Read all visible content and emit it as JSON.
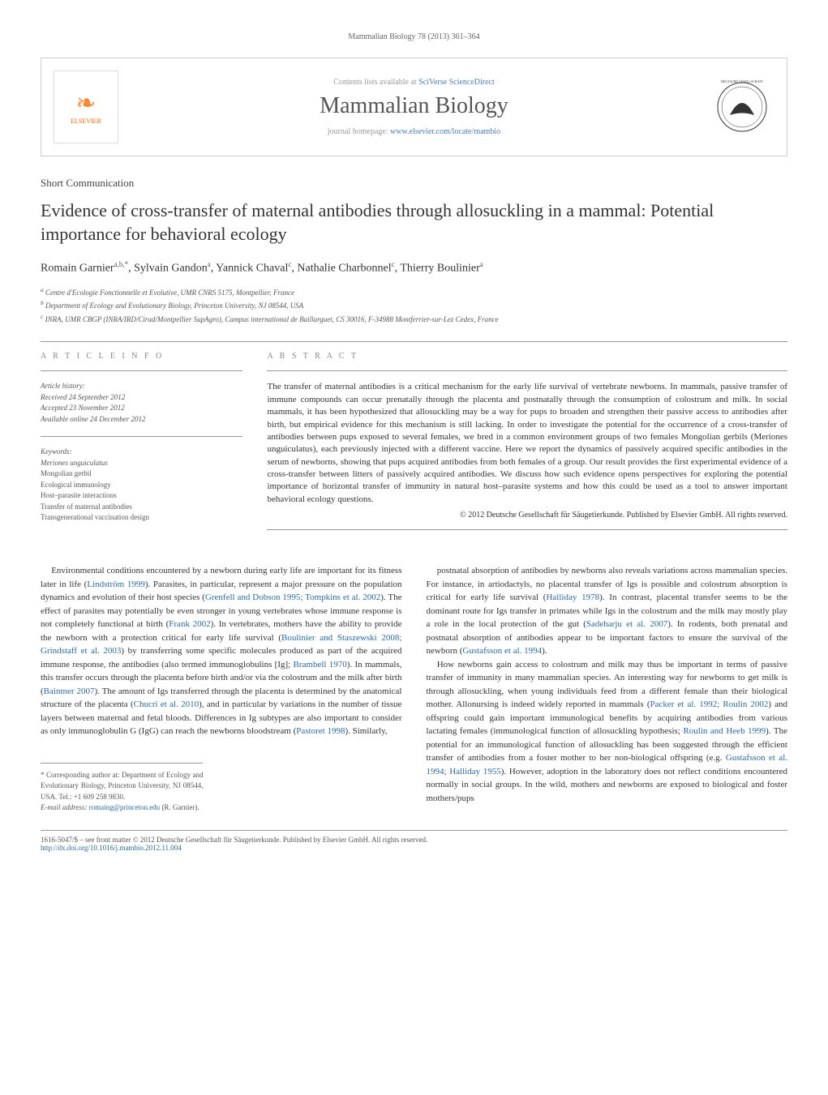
{
  "header_page": "Mammalian Biology 78 (2013) 361–364",
  "banner": {
    "contents_text": "Contents lists available at ",
    "contents_link": "SciVerse ScienceDirect",
    "journal_title": "Mammalian Biology",
    "homepage_label": "journal homepage: ",
    "homepage_link": "www.elsevier.com/locate/mambio",
    "elsevier_label": "ELSEVIER"
  },
  "section_label": "Short Communication",
  "title": "Evidence of cross-transfer of maternal antibodies through allosuckling in a mammal: Potential importance for behavioral ecology",
  "authors_html": "Romain Garnier<sup>a,b,*</sup>, Sylvain Gandon<sup>a</sup>, Yannick Chaval<sup>c</sup>, Nathalie Charbonnel<sup>c</sup>, Thierry Boulinier<sup>a</sup>",
  "affiliations": {
    "a": "Centre d'Ecologie Fonctionnelle et Evolutive, UMR CNRS 5175, Montpellier, France",
    "b": "Department of Ecology and Evolutionary Biology, Princeton University, NJ 08544, USA",
    "c": "INRA, UMR CBGP (INRA/IRD/Cirad/Montpellier SupAgro), Campus international de Baillarguet, CS 30016, F-34988 Montferrier-sur-Lez Cedex, France"
  },
  "article_info": {
    "heading": "A R T I C L E   I N F O",
    "history_head": "Article history:",
    "received": "Received 24 September 2012",
    "accepted": "Accepted 23 November 2012",
    "online": "Available online 24 December 2012",
    "keywords_head": "Keywords:",
    "kw1": "Meriones unguiculatus",
    "kw2": "Mongolian gerbil",
    "kw3": "Ecological immunology",
    "kw4": "Host–parasite interactions",
    "kw5": "Transfer of maternal antibodies",
    "kw6": "Transgenerational vaccination design"
  },
  "abstract": {
    "heading": "A B S T R A C T",
    "text": "The transfer of maternal antibodies is a critical mechanism for the early life survival of vertebrate newborns. In mammals, passive transfer of immune compounds can occur prenatally through the placenta and postnatally through the consumption of colostrum and milk. In social mammals, it has been hypothesized that allosuckling may be a way for pups to broaden and strengthen their passive access to antibodies after birth, but empirical evidence for this mechanism is still lacking. In order to investigate the potential for the occurrence of a cross-transfer of antibodies between pups exposed to several females, we bred in a common environment groups of two females Mongolian gerbils (Meriones unguiculatus), each previously injected with a different vaccine. Here we report the dynamics of passively acquired specific antibodies in the serum of newborns, showing that pups acquired antibodies from both females of a group. Our result provides the first experimental evidence of a cross-transfer between litters of passively acquired antibodies. We discuss how such evidence opens perspectives for exploring the potential importance of horizontal transfer of immunity in natural host–parasite systems and how this could be used as a tool to answer important behavioral ecology questions.",
    "copyright": "© 2012 Deutsche Gesellschaft für Säugetierkunde. Published by Elsevier GmbH. All rights reserved."
  },
  "body": {
    "col1": "Environmental conditions encountered by a newborn during early life are important for its fitness later in life (<span class=\"cite\">Lindström 1999</span>). Parasites, in particular, represent a major pressure on the population dynamics and evolution of their host species (<span class=\"cite\">Grenfell and Dobson 1995; Tompkins et al. 2002</span>). The effect of parasites may potentially be even stronger in young vertebrates whose immune response is not completely functional at birth (<span class=\"cite\">Frank 2002</span>). In vertebrates, mothers have the ability to provide the newborn with a protection critical for early life survival (<span class=\"cite\">Boulinier and Staszewski 2008; Grindstaff et al. 2003</span>) by transferring some specific molecules produced as part of the acquired immune response, the antibodies (also termed immunoglobulins [Ig]; <span class=\"cite\">Brambell 1970</span>). In mammals, this transfer occurs through the placenta before birth and/or via the colostrum and the milk after birth (<span class=\"cite\">Baintner 2007</span>). The amount of Igs transferred through the placenta is determined by the anatomical structure of the placenta (<span class=\"cite\">Chucri et al. 2010</span>), and in particular by variations in the number of tissue layers between maternal and fetal bloods. Differences in Ig subtypes are also important to consider as only immunoglobulin G (IgG) can reach the newborns bloodstream (<span class=\"cite\">Pastoret 1998</span>). Similarly,",
    "col2": "postnatal absorption of antibodies by newborns also reveals variations across mammalian species. For instance, in artiodactyls, no placental transfer of Igs is possible and colostrum absorption is critical for early life survival (<span class=\"cite\">Halliday 1978</span>). In contrast, placental transfer seems to be the dominant route for Igs transfer in primates while Igs in the colostrum and the milk may mostly play a role in the local protection of the gut (<span class=\"cite\">Sadeharju et al. 2007</span>). In rodents, both prenatal and postnatal absorption of antibodies appear to be important factors to ensure the survival of the newborn (<span class=\"cite\">Gustafsson et al. 1994</span>).",
    "col2b": "How newborns gain access to colostrum and milk may thus be important in terms of passive transfer of immunity in many mammalian species. An interesting way for newborns to get milk is through allosuckling, when young individuals feed from a different female than their biological mother. Allonursing is indeed widely reported in mammals (<span class=\"cite\">Packer et al. 1992; Roulin 2002</span>) and offspring could gain important immunological benefits by acquiring antibodies from various lactating females (immunological function of allosuckling hypothesis; <span class=\"cite\">Roulin and Heeb 1999</span>). The potential for an immunological function of allosuckling has been suggested through the efficient transfer of antibodies from a foster mother to her non-biological offspring (e.g. <span class=\"cite\">Gustafsson et al. 1994; Halliday 1955</span>). However, adoption in the laboratory does not reflect conditions encountered normally in social groups. In the wild, mothers and newborns are exposed to biological and foster mothers/pups"
  },
  "corresp": {
    "star": "* Corresponding author at: Department of Ecology and Evolutionary Biology, Princeton University, NJ 08544, USA. Tel.: +1 609 258 9830.",
    "email_label": "E-mail address: ",
    "email": "romaing@princeton.edu",
    "email_person": " (R. Garnier)."
  },
  "footer": {
    "issn": "1616-5047/$ – see front matter © 2012 Deutsche Gesellschaft für Säugetierkunde. Published by Elsevier GmbH. All rights reserved.",
    "doi": "http://dx.doi.org/10.1016/j.mambio.2012.11.004"
  },
  "colors": {
    "link": "#2a6aa8",
    "elsevier_orange": "#ff6600",
    "text": "#333333",
    "muted": "#888888"
  }
}
